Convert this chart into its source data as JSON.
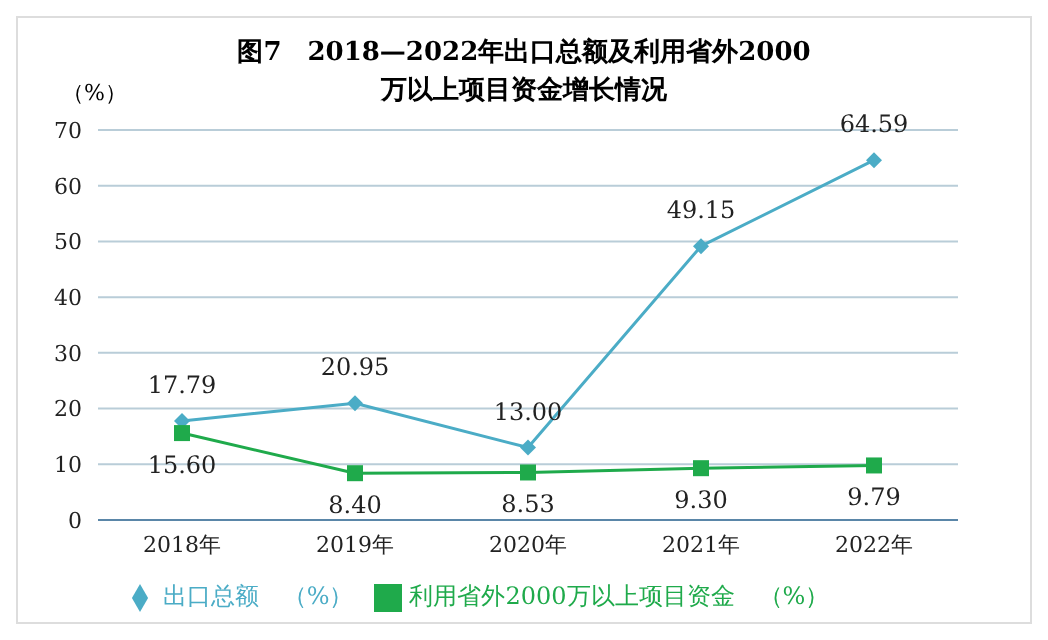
{
  "chart_data": {
    "type": "line",
    "title": "图7　2018—2022年出口总额及利用省外2000万以上项目资金增长情况",
    "ylabel": "（%）",
    "categories": [
      "2018年",
      "2019年",
      "2020年",
      "2021年",
      "2022年"
    ],
    "series": [
      {
        "name": "出口总额　（%）",
        "color": "#4bacc6",
        "marker": "diamond",
        "values": [
          17.79,
          20.95,
          13.0,
          49.15,
          64.59
        ],
        "value_labels": [
          "17.79",
          "20.95",
          "13.00",
          "49.15",
          "64.59"
        ]
      },
      {
        "name": "利用省外2000万以上项目资金　（%）",
        "color": "#1faa4b",
        "marker": "square",
        "values": [
          15.6,
          8.4,
          8.53,
          9.3,
          9.79
        ],
        "value_labels": [
          "15.60",
          "8.40",
          "8.53",
          "9.30",
          "9.79"
        ]
      }
    ],
    "ylim": [
      0,
      70
    ],
    "yticks": [
      0,
      10,
      20,
      30,
      40,
      50,
      60,
      70
    ],
    "grid": "y",
    "legend": "bottom"
  }
}
